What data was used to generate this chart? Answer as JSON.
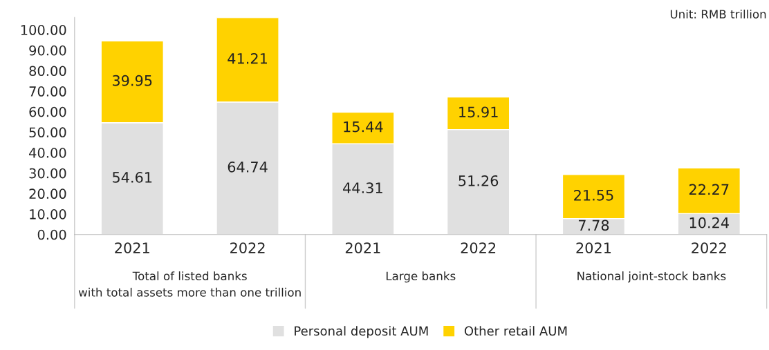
{
  "chart_data": {
    "type": "bar",
    "stacked": true,
    "categories": [
      "2021",
      "2022",
      "2021",
      "2022",
      "2021",
      "2022"
    ],
    "series": [
      {
        "name": "Personal deposit AUM",
        "color": "#e0e0e0",
        "values": [
          54.61,
          64.74,
          44.31,
          51.26,
          7.78,
          10.24
        ]
      },
      {
        "name": "Other retail AUM",
        "color": "#ffd200",
        "values": [
          39.95,
          41.21,
          15.44,
          15.91,
          21.55,
          22.27
        ]
      }
    ],
    "ylim": [
      0,
      106
    ],
    "yticks": [
      {
        "value": 0,
        "label": "0.00"
      },
      {
        "value": 10,
        "label": "10.00"
      },
      {
        "value": 20,
        "label": "20.00"
      },
      {
        "value": 30,
        "label": "30.00"
      },
      {
        "value": 40,
        "label": "40.00"
      },
      {
        "value": 50,
        "label": "50.00"
      },
      {
        "value": 60,
        "label": "60.00"
      },
      {
        "value": 70,
        "label": "70.00"
      },
      {
        "value": 80,
        "label": "80.00"
      },
      {
        "value": 90,
        "label": "90.00"
      },
      {
        "value": 100,
        "label": "100.00"
      }
    ],
    "annotations": [
      "Unit: RMB trillion",
      "Total of listed banks\nwith total assets more than one trillion",
      "Large banks",
      "National joint-stock banks"
    ],
    "data_labels": true,
    "legend": "bottom",
    "grid": false
  }
}
